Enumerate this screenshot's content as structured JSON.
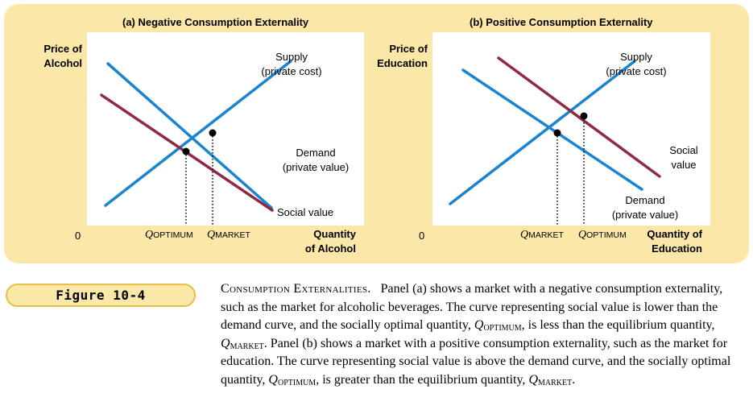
{
  "panel_a": {
    "title": "(a) Negative Consumption Externality",
    "y_axis_label": [
      "Price of",
      "Alcohol"
    ],
    "x_axis_label": [
      "Quantity",
      "of Alcohol"
    ],
    "origin": "0",
    "supply_label": [
      "Supply",
      "(private cost)"
    ],
    "demand_label": [
      "Demand",
      "(private value)"
    ],
    "social_label": "Social value",
    "q_optimum": {
      "q": "Q",
      "sub": "OPTIMUM"
    },
    "q_market": {
      "q": "Q",
      "sub": "MARKET"
    }
  },
  "panel_b": {
    "title": "(b) Positive Consumption Externality",
    "y_axis_label": [
      "Price of",
      "Education"
    ],
    "x_axis_label": [
      "Quantity of",
      "Education"
    ],
    "origin": "0",
    "supply_label": [
      "Supply",
      "(private cost)"
    ],
    "demand_label": [
      "Demand",
      "(private value)"
    ],
    "social_label": [
      "Social",
      "value"
    ],
    "q_market": {
      "q": "Q",
      "sub": "MARKET"
    },
    "q_optimum": {
      "q": "Q",
      "sub": "OPTIMUM"
    }
  },
  "figure_tag": "Figure 10-4",
  "caption": {
    "heading": "Consumption Externalities.",
    "s1": "Panel (a) shows a market with a negative consumption externality, such as the market for alcoholic beverages. The curve representing social value is lower than the demand curve, and the socially optimal quantity, ",
    "q1": "Q",
    "q1_sub": "OPTIMUM",
    "s2": ", is less than the equilibrium quantity, ",
    "q2": "Q",
    "q2_sub": "MARKET",
    "s3": ". Panel (b) shows a market with a positive consumption externality, such as the market for education. The curve representing social value is above the demand curve, and the socially optimal quantity, ",
    "q3": "Q",
    "q3_sub": "OPTIMUM",
    "s4": ", is greater than the equilibrium quantity, ",
    "q4": "Q",
    "q4_sub": "MARKET",
    "s5": "."
  },
  "colors": {
    "panel_bg": "#fbe7a8",
    "supply_demand_blue": "#1b84d1",
    "social_value_maroon": "#8f2a45",
    "tag_border": "#e6bf45"
  }
}
